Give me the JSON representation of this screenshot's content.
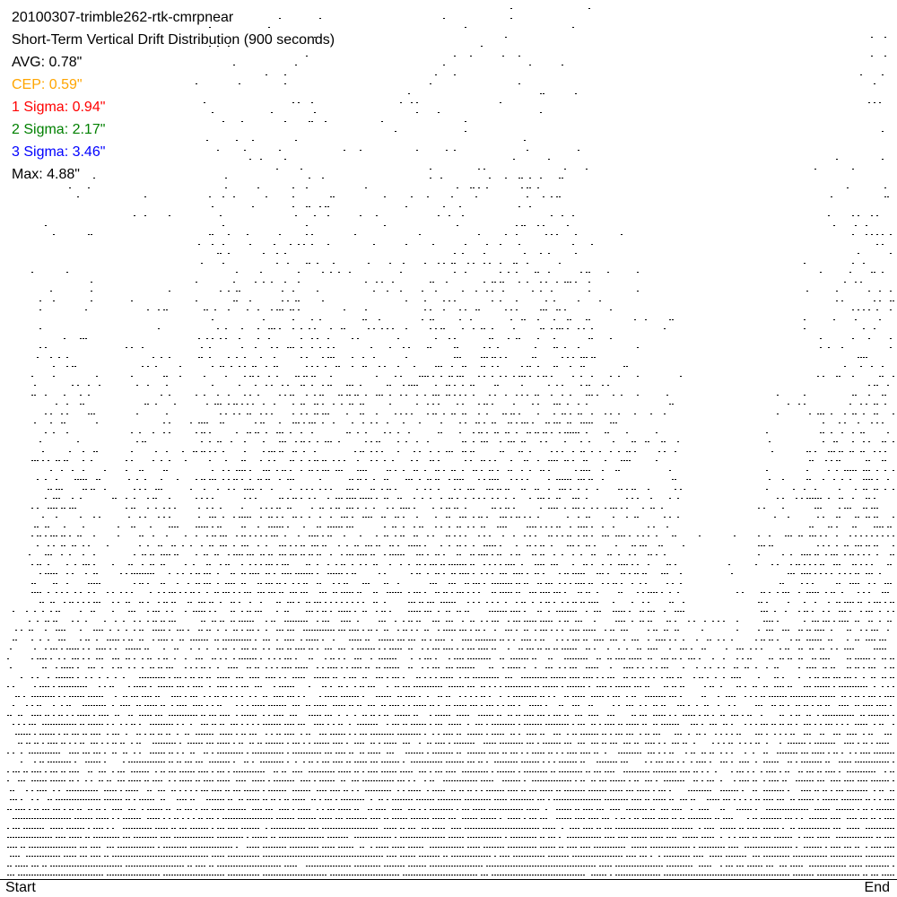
{
  "chart_data": {
    "type": "scatter",
    "title": "20100307-trimble262-rtk-cmrpnear",
    "subtitle": "Short-Term Vertical Drift Distribution (900 seconds)",
    "stats": [
      {
        "label": "AVG: 0.78\"",
        "color": "#000000"
      },
      {
        "label": "CEP: 0.59\"",
        "color": "#FFA500"
      },
      {
        "label": "1 Sigma: 0.94\"",
        "color": "#FF0000"
      },
      {
        "label": "2 Sigma: 2.17\"",
        "color": "#008000"
      },
      {
        "label": "3 Sigma: 3.46\"",
        "color": "#0000FF"
      },
      {
        "label": "Max: 4.88\"",
        "color": "#000000"
      }
    ],
    "x_tick_labels": [
      "Start",
      "End"
    ],
    "ylim": [
      0,
      4.88
    ],
    "y_unit": "inches",
    "grid": false,
    "point_color": "#000000",
    "max_drift_profile_inches": [
      1.9,
      3.9,
      3.9,
      3.9,
      2.4,
      3.8,
      3.8,
      2.9,
      4.8,
      4.8,
      4.8,
      4.8,
      4.8,
      4.8,
      4.2,
      4.2,
      4.4,
      4.4,
      4.88,
      4.88,
      4.88,
      4.88,
      4.88,
      4.88,
      4.88,
      3.4,
      3.7,
      3.2,
      3.2,
      2.1,
      2.0,
      2.0,
      2.7,
      2.7,
      4.0,
      4.0,
      4.7,
      4.7
    ]
  }
}
